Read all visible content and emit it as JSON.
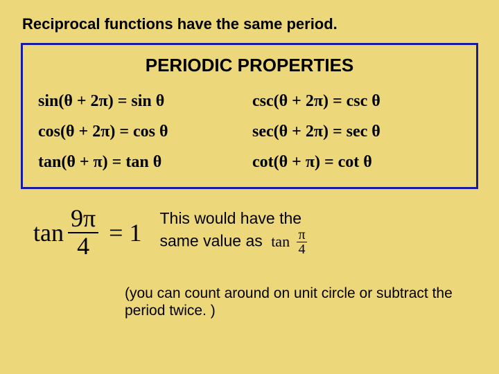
{
  "colors": {
    "background": "#ecd77b",
    "border": "#1a1aa0",
    "text": "#000000"
  },
  "typography": {
    "body_font": "Arial",
    "math_font": "Times New Roman",
    "heading_size_pt": 22,
    "box_title_size_pt": 26,
    "prop_size_pt": 24,
    "note_size_pt": 23,
    "footnote_size_pt": 21,
    "equation_size_pt": 36
  },
  "heading": "Reciprocal functions have the same period.",
  "box": {
    "title": "PERIODIC PROPERTIES",
    "rows": [
      {
        "left": "sin(θ + 2π) = sin θ",
        "right": "csc(θ + 2π) = csc θ"
      },
      {
        "left": "cos(θ + 2π) = cos θ",
        "right": "sec(θ + 2π) = sec θ"
      },
      {
        "left": "tan(θ + π) = tan θ",
        "right": "cot(θ + π) = cot θ"
      }
    ]
  },
  "equation": {
    "lhs_func": "tan",
    "lhs_num": "9π",
    "lhs_den": "4",
    "rhs": "1"
  },
  "note": {
    "line1": "This would have the",
    "line2": "same value as",
    "tail_func": "tan",
    "tail_num": "π",
    "tail_den": "4"
  },
  "footnote": "(you can count around on unit circle or subtract the period twice. )"
}
